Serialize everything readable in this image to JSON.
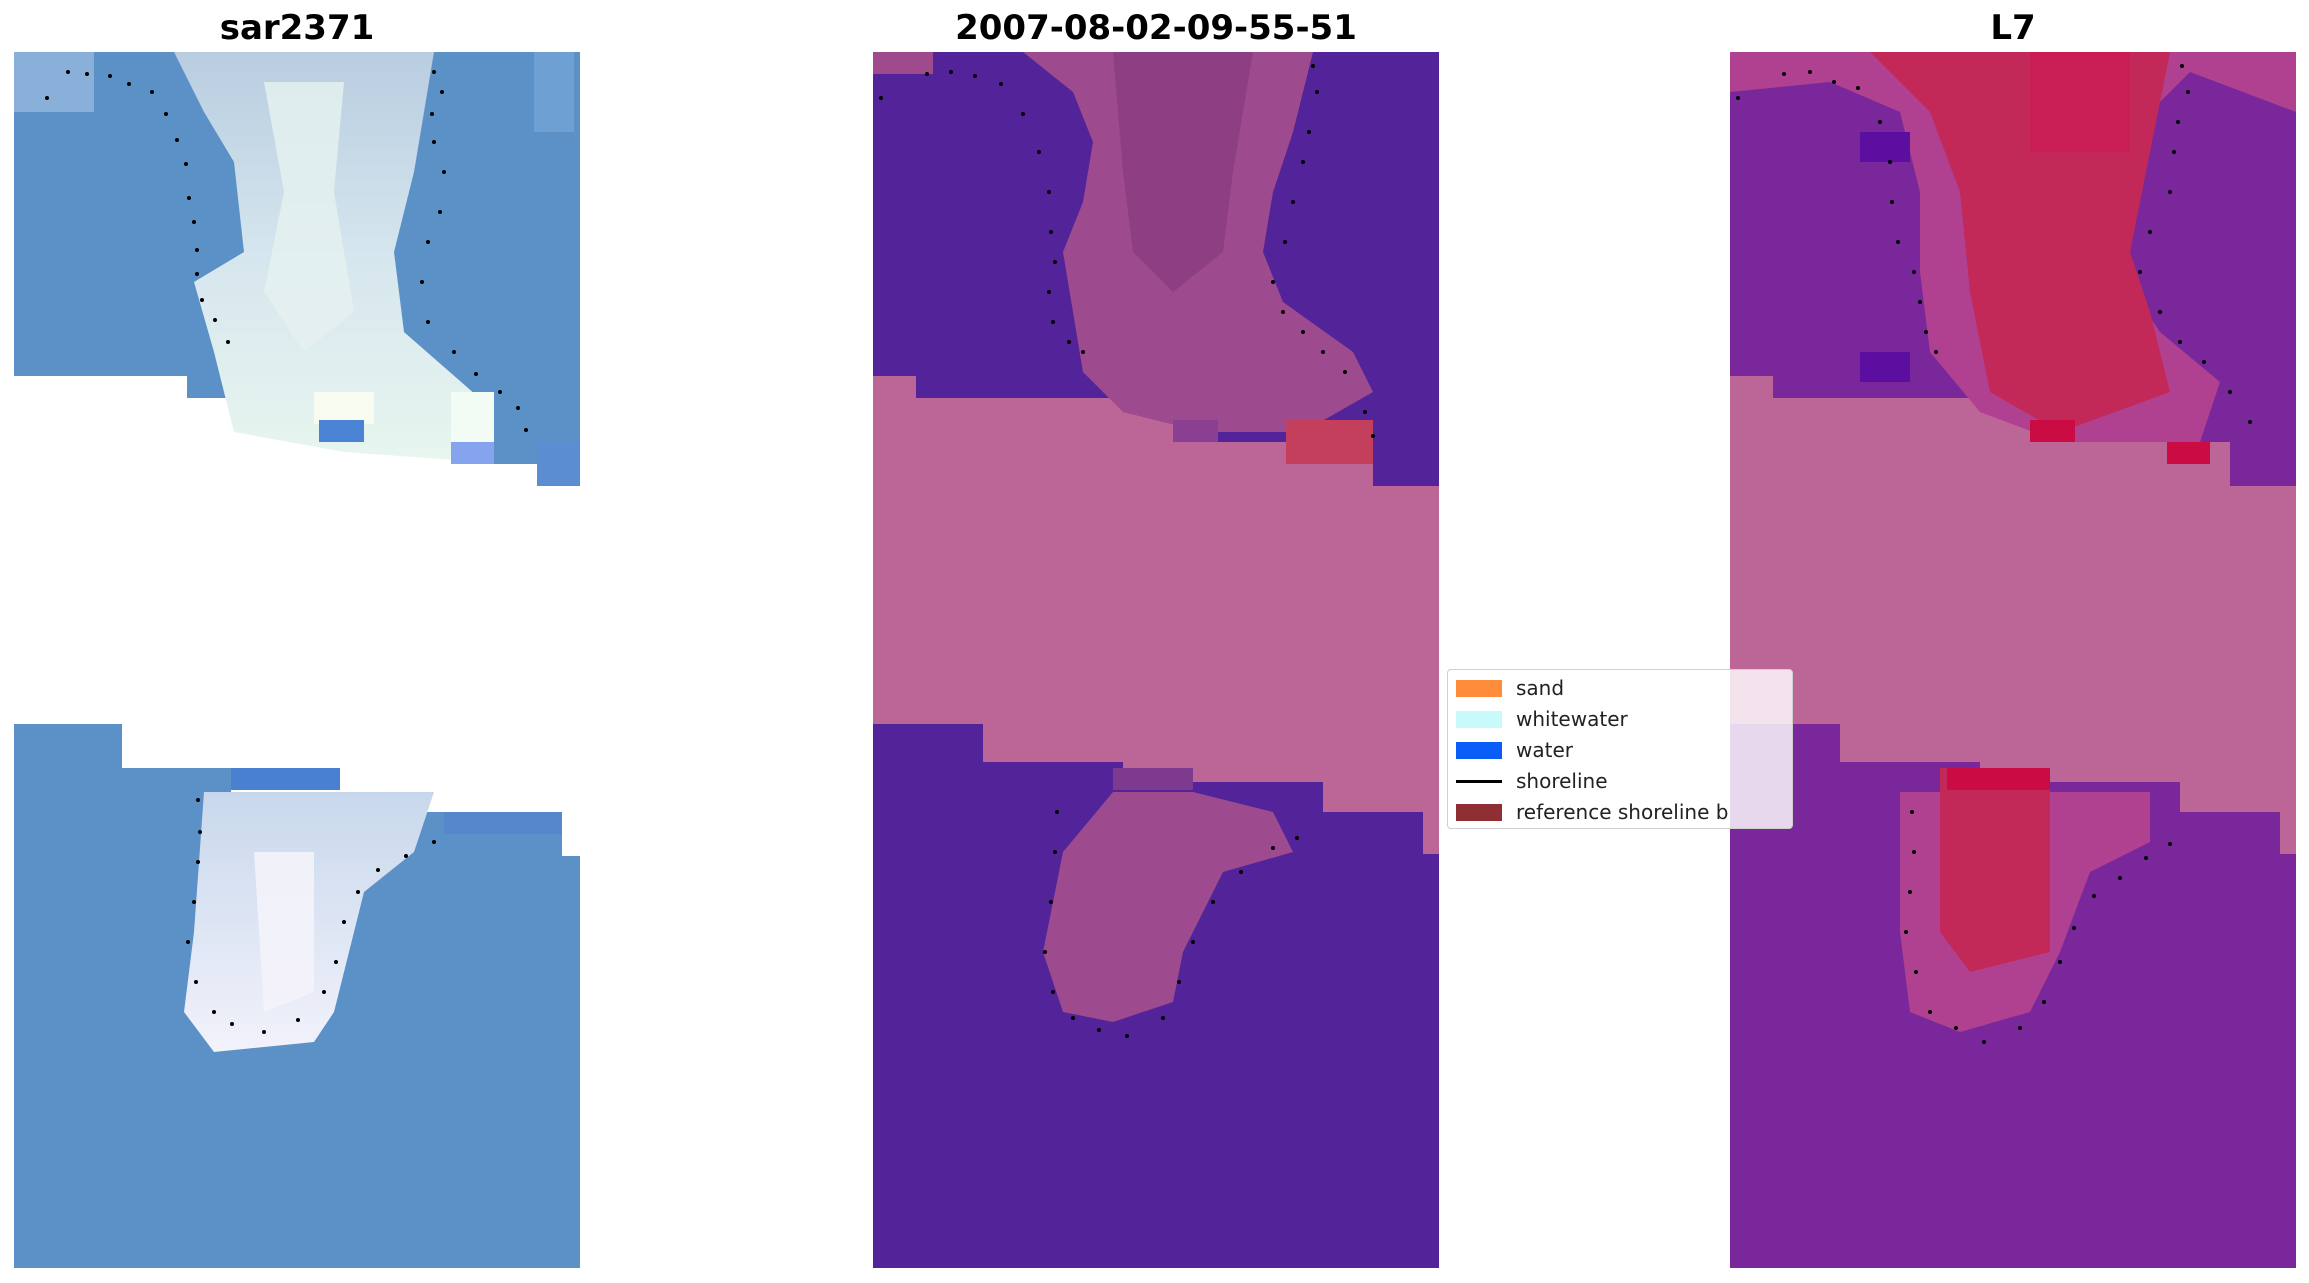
{
  "panels": [
    {
      "title": "sar2371"
    },
    {
      "title": "2007-08-02-09-55-51"
    },
    {
      "title": "L7"
    }
  ],
  "legend": {
    "items": [
      {
        "label": "sand",
        "color": "#ff8c3a"
      },
      {
        "label": "whitewater",
        "color": "#c7fbfb"
      },
      {
        "label": "water",
        "color": "#0a5ef7"
      },
      {
        "label": "shoreline",
        "color": "#000000"
      },
      {
        "label": "reference shoreline b",
        "color": "#8f2f33"
      }
    ]
  },
  "colors": {
    "water_rgb": "#5a8fc8",
    "water_class": "#532499",
    "nodata": "#bc6597",
    "water_index_low": "#73229a",
    "water_index_high": "#c31c55"
  }
}
